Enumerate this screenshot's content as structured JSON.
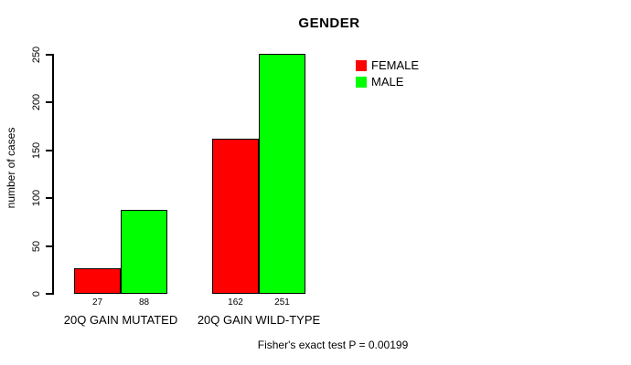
{
  "chart_data": {
    "type": "bar",
    "title": "GENDER",
    "xlabel": "",
    "ylabel": "number of cases",
    "categories": [
      "20Q GAIN MUTATED",
      "20Q GAIN WILD-TYPE"
    ],
    "series": [
      {
        "name": "FEMALE",
        "color": "#ff0000",
        "values": [
          27,
          162
        ]
      },
      {
        "name": "MALE",
        "color": "#00ff00",
        "values": [
          88,
          251
        ]
      }
    ],
    "bar_value_labels": [
      [
        "27",
        "88"
      ],
      [
        "162",
        "251"
      ]
    ],
    "yticks": [
      0,
      50,
      100,
      150,
      200,
      250
    ],
    "ylim": [
      0,
      250
    ],
    "grid": false,
    "legend_position": "top-right",
    "annotation": "Fisher's exact test P = 0.00199"
  },
  "colors": {
    "background": "#ffffff",
    "text": "#000000",
    "axis": "#000000",
    "female_bar": "#ff0000",
    "male_bar": "#00ff00"
  }
}
